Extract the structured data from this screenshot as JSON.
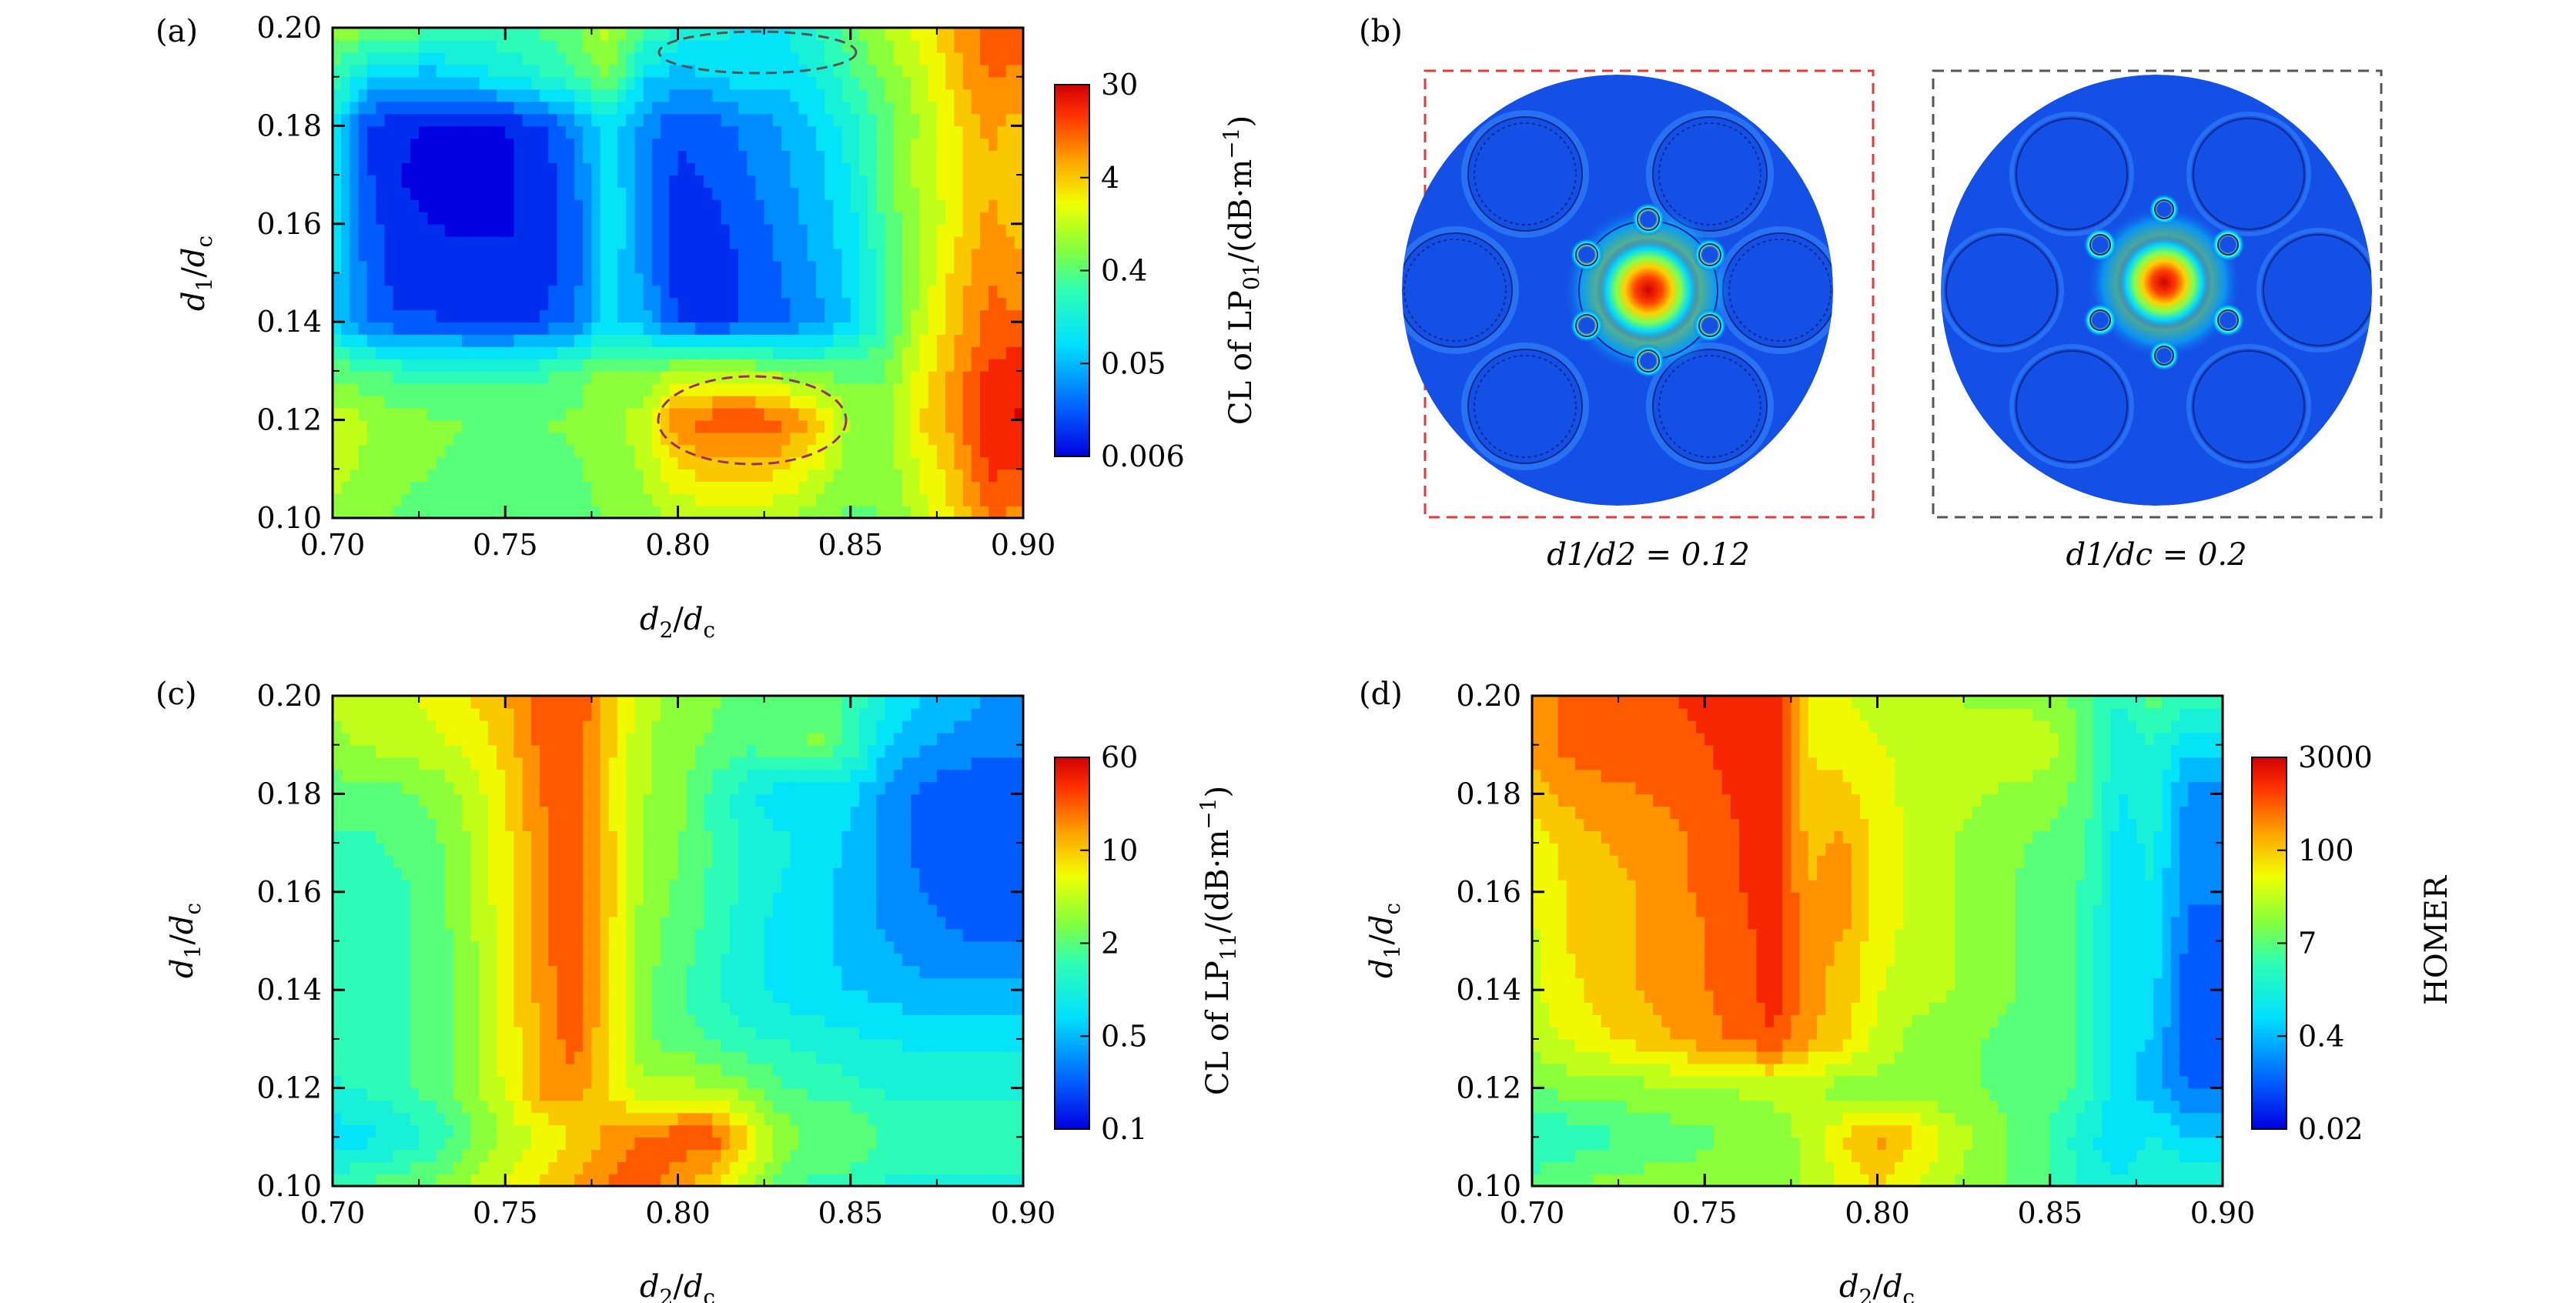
{
  "chart_data": [
    {
      "id": "a",
      "panel_label": "(a)",
      "type": "heatmap",
      "xlabel": "d2/dc",
      "ylabel": "d1/dc",
      "x_ticks": [
        "0.70",
        "0.75",
        "0.80",
        "0.85",
        "0.90"
      ],
      "y_ticks": [
        "0.10",
        "0.12",
        "0.14",
        "0.16",
        "0.18",
        "0.20"
      ],
      "xlim": [
        0.7,
        0.9
      ],
      "ylim": [
        0.1,
        0.2
      ],
      "x": [
        0.7,
        0.71,
        0.72,
        0.73,
        0.74,
        0.75,
        0.76,
        0.77,
        0.78,
        0.79,
        0.8,
        0.81,
        0.82,
        0.83,
        0.84,
        0.85,
        0.86,
        0.87,
        0.88,
        0.89,
        0.9
      ],
      "y": [
        0.1,
        0.11,
        0.12,
        0.13,
        0.14,
        0.15,
        0.16,
        0.17,
        0.18,
        0.19,
        0.2
      ],
      "z": [
        [
          0.57,
          0.55,
          0.52,
          0.52,
          0.5,
          0.5,
          0.5,
          0.5,
          0.54,
          0.56,
          0.6,
          0.62,
          0.62,
          0.6,
          0.56,
          0.52,
          0.53,
          0.62,
          0.72,
          0.85,
          0.82
        ],
        [
          0.62,
          0.58,
          0.54,
          0.53,
          0.52,
          0.52,
          0.52,
          0.52,
          0.56,
          0.6,
          0.72,
          0.75,
          0.75,
          0.73,
          0.66,
          0.55,
          0.55,
          0.66,
          0.76,
          0.92,
          0.9
        ],
        [
          0.64,
          0.6,
          0.55,
          0.54,
          0.53,
          0.53,
          0.53,
          0.54,
          0.58,
          0.62,
          0.84,
          0.88,
          0.9,
          0.86,
          0.76,
          0.58,
          0.56,
          0.72,
          0.8,
          0.96,
          0.98
        ],
        [
          0.52,
          0.48,
          0.45,
          0.44,
          0.44,
          0.44,
          0.45,
          0.5,
          0.55,
          0.55,
          0.6,
          0.62,
          0.6,
          0.56,
          0.52,
          0.5,
          0.53,
          0.68,
          0.8,
          0.92,
          0.95
        ],
        [
          0.3,
          0.15,
          0.1,
          0.1,
          0.08,
          0.08,
          0.1,
          0.16,
          0.3,
          0.25,
          0.1,
          0.08,
          0.1,
          0.14,
          0.2,
          0.28,
          0.45,
          0.62,
          0.75,
          0.86,
          0.85
        ],
        [
          0.3,
          0.14,
          0.06,
          0.05,
          0.05,
          0.05,
          0.06,
          0.12,
          0.32,
          0.2,
          0.06,
          0.06,
          0.1,
          0.16,
          0.22,
          0.3,
          0.45,
          0.6,
          0.74,
          0.84,
          0.8
        ],
        [
          0.32,
          0.12,
          0.05,
          0.03,
          0.02,
          0.02,
          0.05,
          0.12,
          0.34,
          0.2,
          0.06,
          0.08,
          0.12,
          0.18,
          0.24,
          0.32,
          0.48,
          0.58,
          0.7,
          0.8,
          0.75
        ],
        [
          0.34,
          0.1,
          0.03,
          0.01,
          0.01,
          0.02,
          0.05,
          0.14,
          0.34,
          0.18,
          0.08,
          0.1,
          0.15,
          0.2,
          0.26,
          0.34,
          0.52,
          0.62,
          0.68,
          0.78,
          0.72
        ],
        [
          0.36,
          0.1,
          0.04,
          0.02,
          0.02,
          0.03,
          0.07,
          0.18,
          0.32,
          0.2,
          0.1,
          0.12,
          0.18,
          0.22,
          0.28,
          0.38,
          0.5,
          0.6,
          0.7,
          0.8,
          0.75
        ],
        [
          0.45,
          0.3,
          0.25,
          0.25,
          0.3,
          0.35,
          0.4,
          0.45,
          0.55,
          0.3,
          0.25,
          0.28,
          0.32,
          0.3,
          0.35,
          0.45,
          0.55,
          0.62,
          0.75,
          0.85,
          0.82
        ],
        [
          0.58,
          0.55,
          0.52,
          0.48,
          0.45,
          0.45,
          0.48,
          0.52,
          0.62,
          0.48,
          0.4,
          0.36,
          0.34,
          0.34,
          0.4,
          0.5,
          0.6,
          0.68,
          0.78,
          0.88,
          0.88
        ]
      ],
      "colorbar": {
        "label_prefix": "CL of LP",
        "label_sub": "01",
        "label_suffix": "/(dB·m",
        "label_exp": "−1",
        "label_close": ")",
        "ticks": [
          "30",
          "4",
          "0.4",
          "0.05",
          "0.006"
        ]
      },
      "annotations": [
        "dashed ellipse near (0.82, 0.195)",
        "dashed ellipse around (0.82, 0.12)"
      ]
    },
    {
      "id": "c",
      "panel_label": "(c)",
      "type": "heatmap",
      "xlabel": "d2/dc",
      "ylabel": "d1/dc",
      "x_ticks": [
        "0.70",
        "0.75",
        "0.80",
        "0.85",
        "0.90"
      ],
      "y_ticks": [
        "0.10",
        "0.12",
        "0.14",
        "0.16",
        "0.18",
        "0.20"
      ],
      "xlim": [
        0.7,
        0.9
      ],
      "ylim": [
        0.1,
        0.2
      ],
      "x": [
        0.7,
        0.71,
        0.72,
        0.73,
        0.74,
        0.75,
        0.76,
        0.77,
        0.78,
        0.79,
        0.8,
        0.81,
        0.82,
        0.83,
        0.84,
        0.85,
        0.86,
        0.87,
        0.88,
        0.89,
        0.9
      ],
      "y": [
        0.1,
        0.11,
        0.12,
        0.13,
        0.14,
        0.15,
        0.16,
        0.17,
        0.18,
        0.19,
        0.2
      ],
      "z": [
        [
          0.45,
          0.48,
          0.52,
          0.55,
          0.6,
          0.66,
          0.72,
          0.78,
          0.85,
          0.9,
          0.8,
          0.72,
          0.6,
          0.5,
          0.45,
          0.42,
          0.4,
          0.4,
          0.4,
          0.4,
          0.4
        ],
        [
          0.3,
          0.32,
          0.36,
          0.42,
          0.52,
          0.6,
          0.66,
          0.72,
          0.8,
          0.86,
          0.88,
          0.9,
          0.72,
          0.58,
          0.5,
          0.55,
          0.45,
          0.42,
          0.42,
          0.42,
          0.42
        ],
        [
          0.4,
          0.42,
          0.45,
          0.5,
          0.58,
          0.66,
          0.8,
          0.82,
          0.72,
          0.6,
          0.62,
          0.6,
          0.55,
          0.48,
          0.45,
          0.42,
          0.4,
          0.4,
          0.4,
          0.4,
          0.4
        ],
        [
          0.42,
          0.44,
          0.46,
          0.5,
          0.58,
          0.68,
          0.78,
          0.88,
          0.72,
          0.55,
          0.5,
          0.46,
          0.42,
          0.4,
          0.38,
          0.36,
          0.34,
          0.33,
          0.33,
          0.33,
          0.33
        ],
        [
          0.42,
          0.44,
          0.46,
          0.5,
          0.58,
          0.68,
          0.8,
          0.9,
          0.72,
          0.55,
          0.48,
          0.42,
          0.36,
          0.32,
          0.3,
          0.28,
          0.26,
          0.24,
          0.23,
          0.23,
          0.23
        ],
        [
          0.42,
          0.44,
          0.46,
          0.5,
          0.58,
          0.68,
          0.82,
          0.9,
          0.74,
          0.56,
          0.5,
          0.44,
          0.36,
          0.32,
          0.3,
          0.26,
          0.22,
          0.18,
          0.16,
          0.15,
          0.15
        ],
        [
          0.42,
          0.44,
          0.46,
          0.5,
          0.6,
          0.7,
          0.82,
          0.9,
          0.74,
          0.58,
          0.52,
          0.46,
          0.38,
          0.34,
          0.3,
          0.26,
          0.2,
          0.16,
          0.14,
          0.13,
          0.13
        ],
        [
          0.45,
          0.46,
          0.48,
          0.52,
          0.6,
          0.7,
          0.82,
          0.9,
          0.74,
          0.6,
          0.54,
          0.46,
          0.4,
          0.36,
          0.32,
          0.27,
          0.2,
          0.14,
          0.12,
          0.12,
          0.12
        ],
        [
          0.5,
          0.5,
          0.52,
          0.55,
          0.62,
          0.72,
          0.84,
          0.9,
          0.72,
          0.6,
          0.55,
          0.45,
          0.36,
          0.3,
          0.3,
          0.3,
          0.2,
          0.14,
          0.1,
          0.09,
          0.09
        ],
        [
          0.58,
          0.6,
          0.62,
          0.64,
          0.68,
          0.74,
          0.86,
          0.9,
          0.74,
          0.6,
          0.56,
          0.52,
          0.48,
          0.5,
          0.55,
          0.45,
          0.3,
          0.22,
          0.2,
          0.18,
          0.18
        ],
        [
          0.6,
          0.62,
          0.64,
          0.68,
          0.72,
          0.78,
          0.88,
          0.9,
          0.76,
          0.62,
          0.58,
          0.54,
          0.5,
          0.52,
          0.5,
          0.45,
          0.35,
          0.28,
          0.25,
          0.22,
          0.22
        ]
      ],
      "colorbar": {
        "label_prefix": "CL of LP",
        "label_sub": "11",
        "label_suffix": "/(dB·m",
        "label_exp": "−1",
        "label_close": ")",
        "ticks": [
          "60",
          "10",
          "2",
          "0.5",
          "0.1"
        ]
      }
    },
    {
      "id": "d",
      "panel_label": "(d)",
      "type": "heatmap",
      "xlabel": "d2/dc",
      "ylabel": "d1/dc",
      "x_ticks": [
        "0.70",
        "0.75",
        "0.80",
        "0.85",
        "0.90"
      ],
      "y_ticks": [
        "0.10",
        "0.12",
        "0.14",
        "0.16",
        "0.18",
        "0.20"
      ],
      "xlim": [
        0.7,
        0.9
      ],
      "ylim": [
        0.1,
        0.2
      ],
      "x": [
        0.7,
        0.71,
        0.72,
        0.73,
        0.74,
        0.75,
        0.76,
        0.77,
        0.78,
        0.79,
        0.8,
        0.81,
        0.82,
        0.83,
        0.84,
        0.85,
        0.86,
        0.87,
        0.88,
        0.89,
        0.9
      ],
      "y": [
        0.1,
        0.11,
        0.12,
        0.13,
        0.14,
        0.15,
        0.16,
        0.17,
        0.18,
        0.19,
        0.2
      ],
      "z": [
        [
          0.5,
          0.52,
          0.55,
          0.56,
          0.56,
          0.56,
          0.56,
          0.56,
          0.6,
          0.66,
          0.72,
          0.66,
          0.6,
          0.56,
          0.52,
          0.48,
          0.4,
          0.36,
          0.4,
          0.42,
          0.4
        ],
        [
          0.4,
          0.42,
          0.45,
          0.48,
          0.5,
          0.52,
          0.54,
          0.55,
          0.62,
          0.72,
          0.8,
          0.74,
          0.64,
          0.58,
          0.52,
          0.46,
          0.36,
          0.3,
          0.35,
          0.28,
          0.28
        ],
        [
          0.54,
          0.55,
          0.56,
          0.57,
          0.58,
          0.58,
          0.6,
          0.62,
          0.6,
          0.56,
          0.56,
          0.55,
          0.54,
          0.53,
          0.52,
          0.5,
          0.45,
          0.3,
          0.25,
          0.15,
          0.15
        ],
        [
          0.62,
          0.66,
          0.7,
          0.74,
          0.78,
          0.82,
          0.86,
          0.9,
          0.8,
          0.74,
          0.64,
          0.58,
          0.55,
          0.53,
          0.52,
          0.5,
          0.45,
          0.3,
          0.28,
          0.1,
          0.1
        ],
        [
          0.64,
          0.7,
          0.74,
          0.78,
          0.8,
          0.84,
          0.88,
          0.94,
          0.8,
          0.76,
          0.66,
          0.62,
          0.6,
          0.56,
          0.53,
          0.5,
          0.46,
          0.3,
          0.3,
          0.12,
          0.12
        ],
        [
          0.64,
          0.72,
          0.76,
          0.78,
          0.8,
          0.84,
          0.88,
          0.94,
          0.8,
          0.78,
          0.68,
          0.64,
          0.6,
          0.56,
          0.53,
          0.5,
          0.46,
          0.3,
          0.32,
          0.14,
          0.14
        ],
        [
          0.66,
          0.72,
          0.76,
          0.78,
          0.82,
          0.86,
          0.9,
          0.95,
          0.78,
          0.82,
          0.7,
          0.64,
          0.6,
          0.56,
          0.53,
          0.5,
          0.46,
          0.32,
          0.34,
          0.16,
          0.16
        ],
        [
          0.66,
          0.74,
          0.78,
          0.8,
          0.82,
          0.86,
          0.9,
          0.96,
          0.76,
          0.8,
          0.7,
          0.64,
          0.6,
          0.57,
          0.54,
          0.51,
          0.48,
          0.32,
          0.36,
          0.18,
          0.18
        ],
        [
          0.76,
          0.8,
          0.82,
          0.84,
          0.86,
          0.88,
          0.92,
          0.96,
          0.74,
          0.74,
          0.68,
          0.64,
          0.62,
          0.6,
          0.58,
          0.56,
          0.5,
          0.34,
          0.38,
          0.2,
          0.2
        ],
        [
          0.8,
          0.86,
          0.88,
          0.88,
          0.9,
          0.9,
          0.94,
          0.96,
          0.72,
          0.68,
          0.66,
          0.64,
          0.64,
          0.62,
          0.64,
          0.62,
          0.52,
          0.36,
          0.4,
          0.3,
          0.3
        ],
        [
          0.8,
          0.86,
          0.88,
          0.88,
          0.9,
          0.92,
          0.94,
          0.96,
          0.72,
          0.66,
          0.64,
          0.62,
          0.6,
          0.58,
          0.58,
          0.56,
          0.5,
          0.4,
          0.5,
          0.45,
          0.45
        ]
      ],
      "colorbar": {
        "label_prefix": "HOMER",
        "ticks": [
          "3000",
          "100",
          "7",
          "0.4",
          "0.02"
        ]
      }
    }
  ],
  "panel_b": {
    "panel_label": "(b)",
    "left_caption": "d1/d2 = 0.12",
    "right_caption": "d1/dc = 0.2",
    "left_frame_color": "#e03a3a",
    "right_frame_color": "#555555",
    "field_color": "#1450e6"
  }
}
